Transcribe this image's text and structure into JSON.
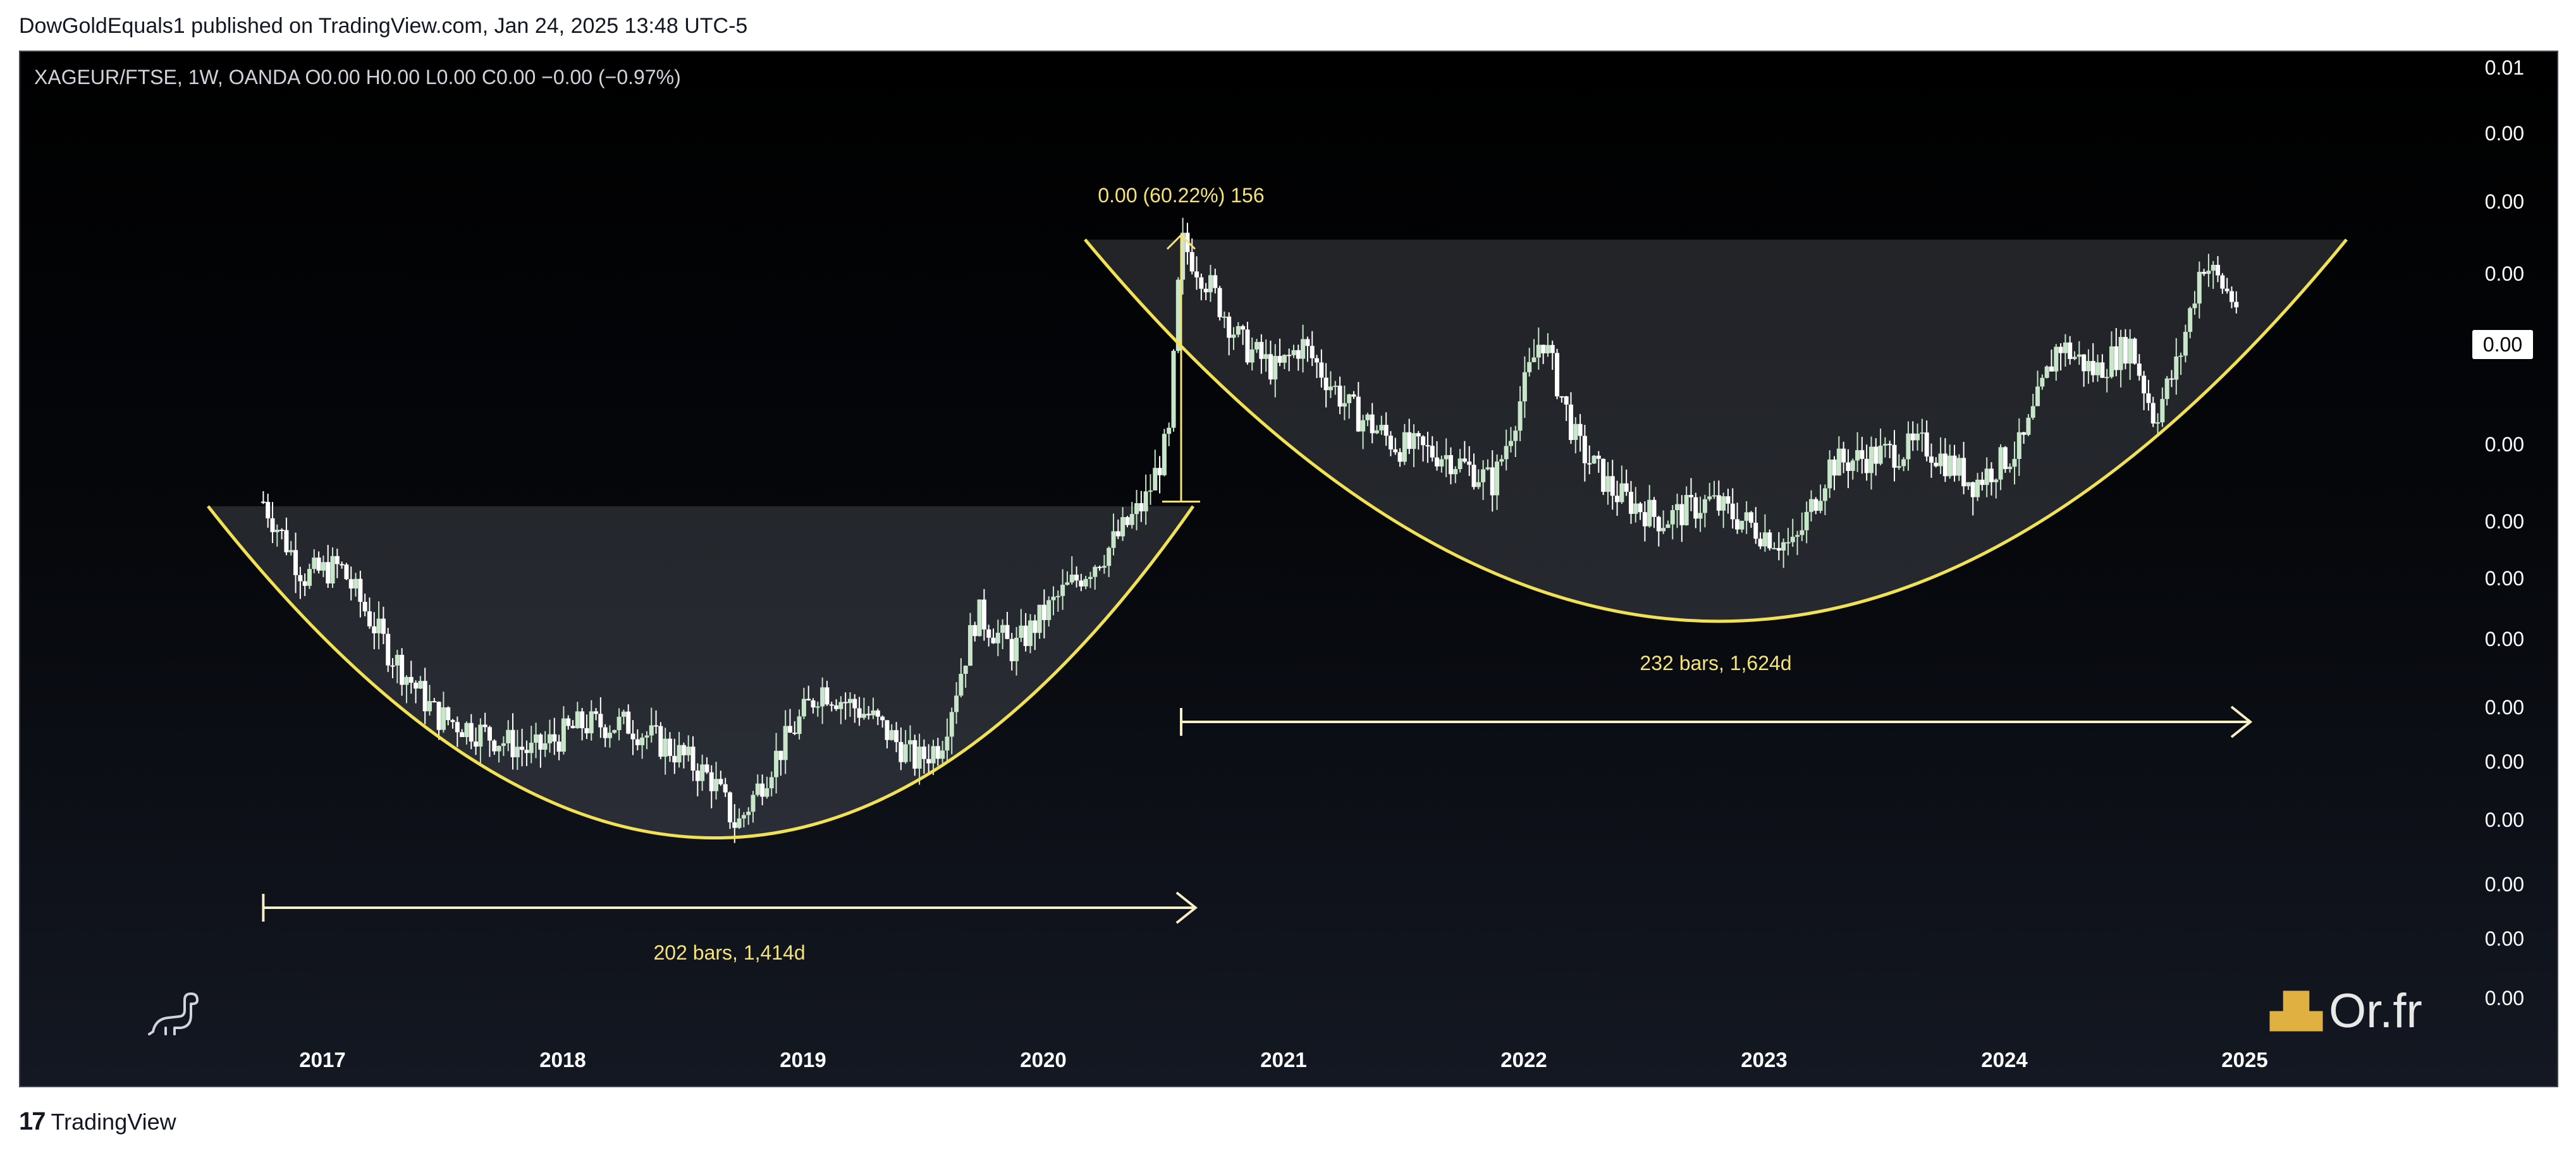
{
  "header": {
    "publisher": "DowGoldEquals1 published on TradingView.com, Jan 24, 2025 13:48 UTC-5"
  },
  "symbol_line": {
    "text": "XAGEUR/FTSE, 1W, OANDA  O0.00  H0.00  L0.00  C0.00  −0.00 (−0.97%)"
  },
  "footer": {
    "logo_mark": "17",
    "brand": "TradingView"
  },
  "watermark": {
    "text": "Or.fr",
    "icon": "gold-bars-icon"
  },
  "colors": {
    "accent_yellow": "#f5e37a",
    "cup_line": "#f2e253",
    "candle_up": "#c8e6c9",
    "candle_down": "#ffffff",
    "background": "#000000"
  },
  "chart_data": {
    "type": "line",
    "title": "",
    "price_axis": {
      "labels": [
        "0.01",
        "0.00",
        "0.00",
        "0.00",
        "0.00",
        "0.00",
        "0.00",
        "0.00",
        "0.00",
        "0.00",
        "0.00",
        "0.00",
        "0.00",
        "0.00",
        "0.00"
      ],
      "current_price_label": "0.00"
    },
    "time_axis": {
      "labels": [
        "2017",
        "2018",
        "2019",
        "2020",
        "2021",
        "2022",
        "2023",
        "2024",
        "2025"
      ],
      "year_values": [
        2017,
        2018,
        2019,
        2020,
        2021,
        2022,
        2023,
        2024,
        2025
      ]
    },
    "annotations": [
      {
        "text": "202 bars, 1,414d",
        "kind": "date-range",
        "from": 2016.78,
        "to": 2020.66
      },
      {
        "text": "232 bars, 1,624d",
        "kind": "date-range",
        "from": 2020.6,
        "to": 2025.05
      },
      {
        "text": "0.00 (60.22%) 156",
        "kind": "price-range",
        "at": 2020.6,
        "percent": 60.22
      }
    ],
    "cup_patterns": [
      {
        "name": "",
        "from": 2016.55,
        "to": 2020.65,
        "rim_price_index": 0.545,
        "bottom": 2018.72
      },
      {
        "name": "",
        "from": 2020.2,
        "to": 2025.45,
        "rim_price_index": 0.832,
        "bottom": 2022.85
      }
    ],
    "price_series": {
      "unit": "relative index (0 = chart bottom, 1 = chart top)",
      "x": [
        2016.78,
        2016.95,
        2017.1,
        2017.3,
        2017.5,
        2017.7,
        2017.9,
        2018.1,
        2018.3,
        2018.5,
        2018.65,
        2018.75,
        2018.9,
        2019.1,
        2019.3,
        2019.5,
        2019.6,
        2019.75,
        2019.9,
        2020.1,
        2020.3,
        2020.45,
        2020.55,
        2020.6,
        2020.7,
        2020.85,
        2021.0,
        2021.1,
        2021.3,
        2021.5,
        2021.7,
        2021.9,
        2022.1,
        2022.25,
        2022.4,
        2022.6,
        2022.8,
        2023.0,
        2023.15,
        2023.3,
        2023.5,
        2023.7,
        2023.9,
        2024.1,
        2024.25,
        2024.4,
        2024.55,
        2024.65,
        2024.75,
        2024.85,
        2025.0
      ],
      "values": [
        0.55,
        0.47,
        0.48,
        0.39,
        0.32,
        0.3,
        0.28,
        0.31,
        0.31,
        0.28,
        0.25,
        0.2,
        0.27,
        0.35,
        0.32,
        0.27,
        0.29,
        0.43,
        0.39,
        0.45,
        0.5,
        0.55,
        0.62,
        0.83,
        0.79,
        0.72,
        0.69,
        0.72,
        0.65,
        0.61,
        0.6,
        0.57,
        0.73,
        0.61,
        0.56,
        0.53,
        0.55,
        0.52,
        0.5,
        0.59,
        0.6,
        0.61,
        0.57,
        0.61,
        0.72,
        0.69,
        0.72,
        0.64,
        0.7,
        0.81,
        0.76
      ]
    }
  }
}
